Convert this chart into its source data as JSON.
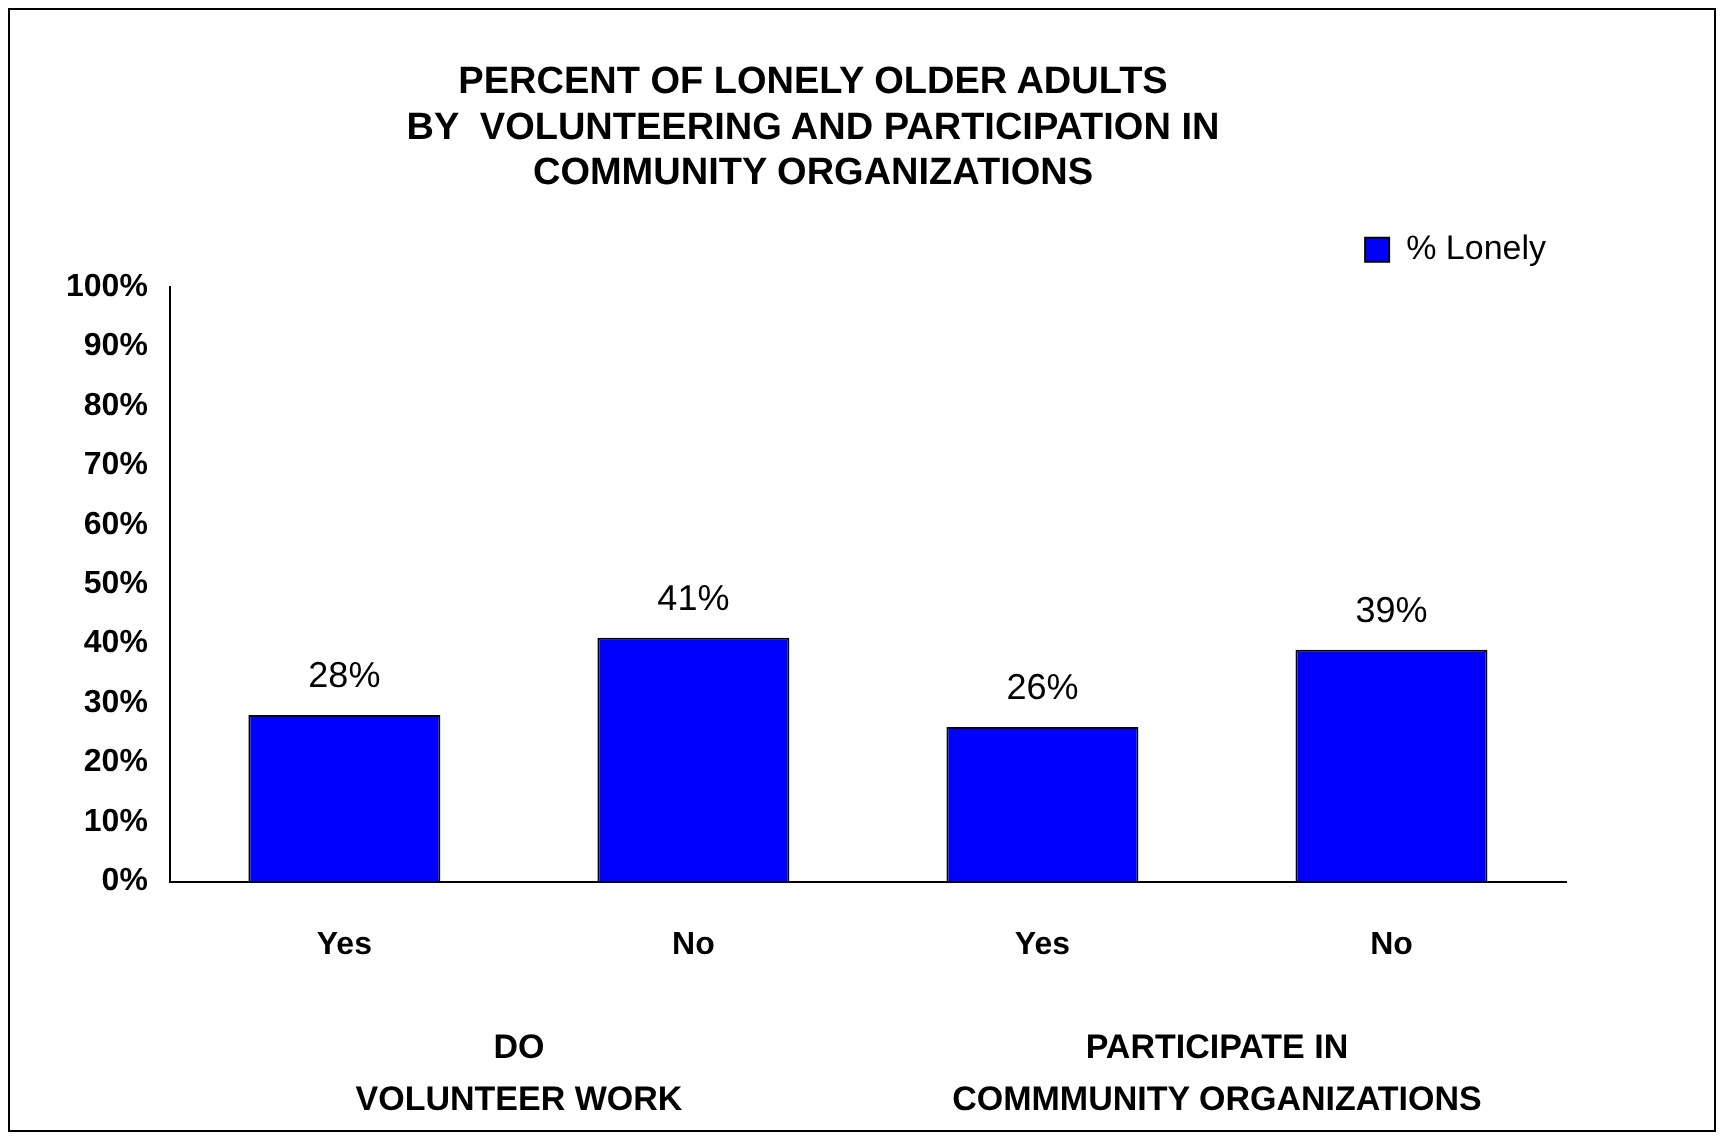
{
  "chart_data": {
    "type": "bar",
    "title": "PERCENT OF LONELY OLDER ADULTS\nBY  VOLUNTEERING AND PARTICIPATION IN\nCOMMUNITY ORGANIZATIONS",
    "categories": [
      "Yes",
      "No",
      "Yes",
      "No"
    ],
    "series": [
      {
        "name": "% Lonely",
        "color": "#0000ff",
        "values": [
          28,
          41,
          26,
          39
        ],
        "value_labels": [
          "28%",
          "41%",
          "26%",
          "39%"
        ]
      }
    ],
    "ylim": [
      0,
      100
    ],
    "yticks": [
      {
        "value": 0,
        "label": "0%"
      },
      {
        "value": 10,
        "label": "10%"
      },
      {
        "value": 20,
        "label": "20%"
      },
      {
        "value": 30,
        "label": "30%"
      },
      {
        "value": 40,
        "label": "40%"
      },
      {
        "value": 50,
        "label": "50%"
      },
      {
        "value": 60,
        "label": "60%"
      },
      {
        "value": 70,
        "label": "70%"
      },
      {
        "value": 80,
        "label": "80%"
      },
      {
        "value": 90,
        "label": "90%"
      },
      {
        "value": 100,
        "label": "100%"
      }
    ],
    "annotations": [
      "DO\nVOLUNTEER WORK",
      "PARTICIPATE IN\nCOMMMUNITY ORGANIZATIONS"
    ],
    "grid": false,
    "legend": "top right"
  }
}
